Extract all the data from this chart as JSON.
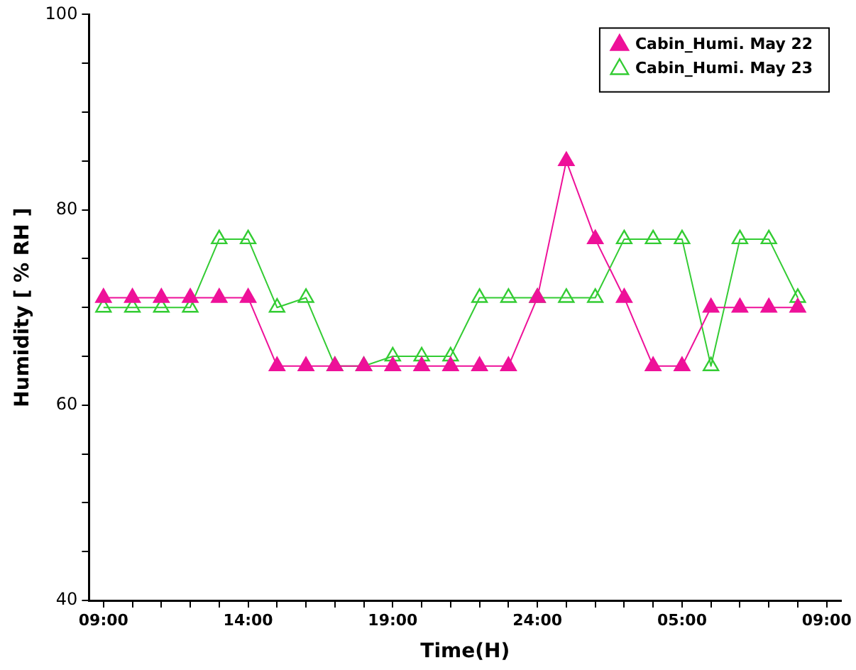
{
  "chart_data": {
    "type": "line",
    "xlabel": "Time(H)",
    "ylabel": "Humidity [ % RH ]",
    "categories": [
      "09:00",
      null,
      null,
      null,
      null,
      "14:00",
      null,
      null,
      null,
      null,
      "19:00",
      null,
      null,
      null,
      null,
      "24:00",
      null,
      null,
      null,
      null,
      "05:00",
      null,
      null,
      null,
      null,
      "09:00"
    ],
    "series": [
      {
        "name": "Cabin_Humi. May 22",
        "color": "#ee1199",
        "values": [
          71,
          71,
          71,
          71,
          71,
          71,
          64,
          64,
          64,
          64,
          64,
          64,
          64,
          64,
          64,
          71,
          85,
          77,
          71,
          64,
          64,
          70,
          70,
          70,
          70,
          null
        ]
      },
      {
        "name": "Cabin_Humi. May 23",
        "color": "#33cc33",
        "values": [
          70,
          70,
          70,
          70,
          77,
          77,
          70,
          71,
          64,
          64,
          65,
          65,
          65,
          71,
          71,
          71,
          71,
          71,
          77,
          77,
          77,
          64,
          77,
          77,
          71,
          null
        ]
      }
    ],
    "ylim": [
      40,
      100
    ],
    "yticks": [
      40,
      {
        "value": 45,
        "label": null
      },
      {
        "value": 50,
        "label": null
      },
      {
        "value": 55,
        "label": null
      },
      60,
      {
        "value": 65,
        "label": null
      },
      {
        "value": 70,
        "label": null
      },
      {
        "value": 75,
        "label": null
      },
      80,
      {
        "value": 85,
        "label": null
      },
      {
        "value": 90,
        "label": null
      },
      {
        "value": 95,
        "label": null
      },
      100
    ],
    "grid": false,
    "legend": "top right",
    "marker": "triangle",
    "line_style": "solid"
  }
}
